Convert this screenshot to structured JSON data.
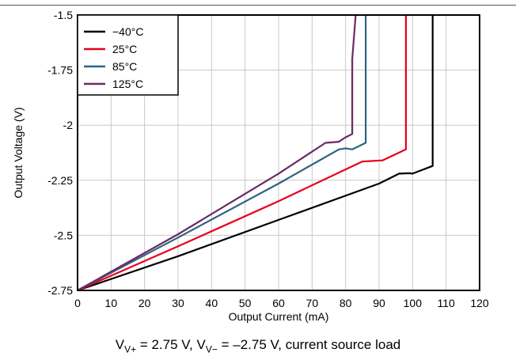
{
  "chart_data": {
    "type": "line",
    "xlabel": "Output Current (mA)",
    "ylabel": "Output Voltage (V)",
    "xlim": [
      0,
      120
    ],
    "ylim": [
      -2.75,
      -1.5
    ],
    "xticks": [
      "0",
      "10",
      "20",
      "30",
      "40",
      "50",
      "60",
      "70",
      "80",
      "90",
      "100",
      "110",
      "120"
    ],
    "yticks": [
      "-1.5",
      "-1.75",
      "-2",
      "-2.25",
      "-2.5",
      "-2.75"
    ],
    "grid": true,
    "legend_position": "top-left",
    "series": [
      {
        "name": "−40°C",
        "color": "#000000",
        "x": [
          0,
          30,
          60,
          90,
          96,
          99,
          100,
          106,
          106,
          106
        ],
        "y": [
          -2.75,
          -2.595,
          -2.43,
          -2.265,
          -2.22,
          -2.218,
          -2.22,
          -2.185,
          -2.0,
          -1.5
        ]
      },
      {
        "name": "25°C",
        "color": "#e8001c",
        "x": [
          0,
          30,
          60,
          85,
          91,
          98,
          98,
          98
        ],
        "y": [
          -2.75,
          -2.55,
          -2.345,
          -2.165,
          -2.16,
          -2.11,
          -1.9,
          -1.5
        ]
      },
      {
        "name": "85°C",
        "color": "#2e6480",
        "x": [
          0,
          30,
          60,
          78,
          80,
          82,
          86,
          86
        ],
        "y": [
          -2.75,
          -2.51,
          -2.265,
          -2.11,
          -2.105,
          -2.11,
          -2.08,
          -1.5
        ]
      },
      {
        "name": "125°C",
        "color": "#6b2a64",
        "x": [
          0,
          30,
          60,
          74,
          76,
          78,
          80,
          82,
          82,
          83
        ],
        "y": [
          -2.75,
          -2.495,
          -2.22,
          -2.08,
          -2.078,
          -2.075,
          -2.055,
          -2.04,
          -1.7,
          -1.5
        ]
      }
    ]
  },
  "caption": {
    "v": "V",
    "sub1": "V+",
    "mid": " = 2.75 V, V",
    "sub2": "V−",
    "tail": " = –2.75 V, current source load"
  }
}
